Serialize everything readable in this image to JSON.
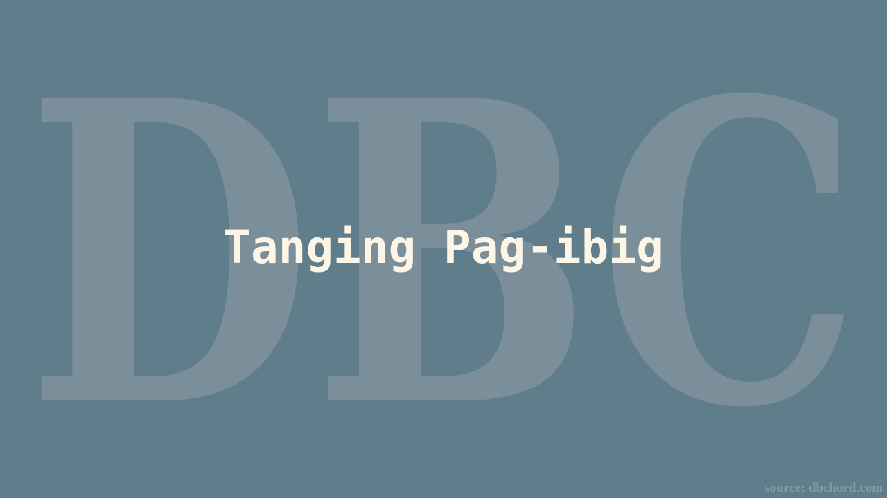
{
  "colors": {
    "background": "#607d8b",
    "watermark": "#7b8f9b",
    "title": "#fdf5e6",
    "source": "#8799a5"
  },
  "watermark": {
    "text": "DBC"
  },
  "title": {
    "text": "Tanging Pag-ibig"
  },
  "source": {
    "text": "source: dbchord.com"
  }
}
